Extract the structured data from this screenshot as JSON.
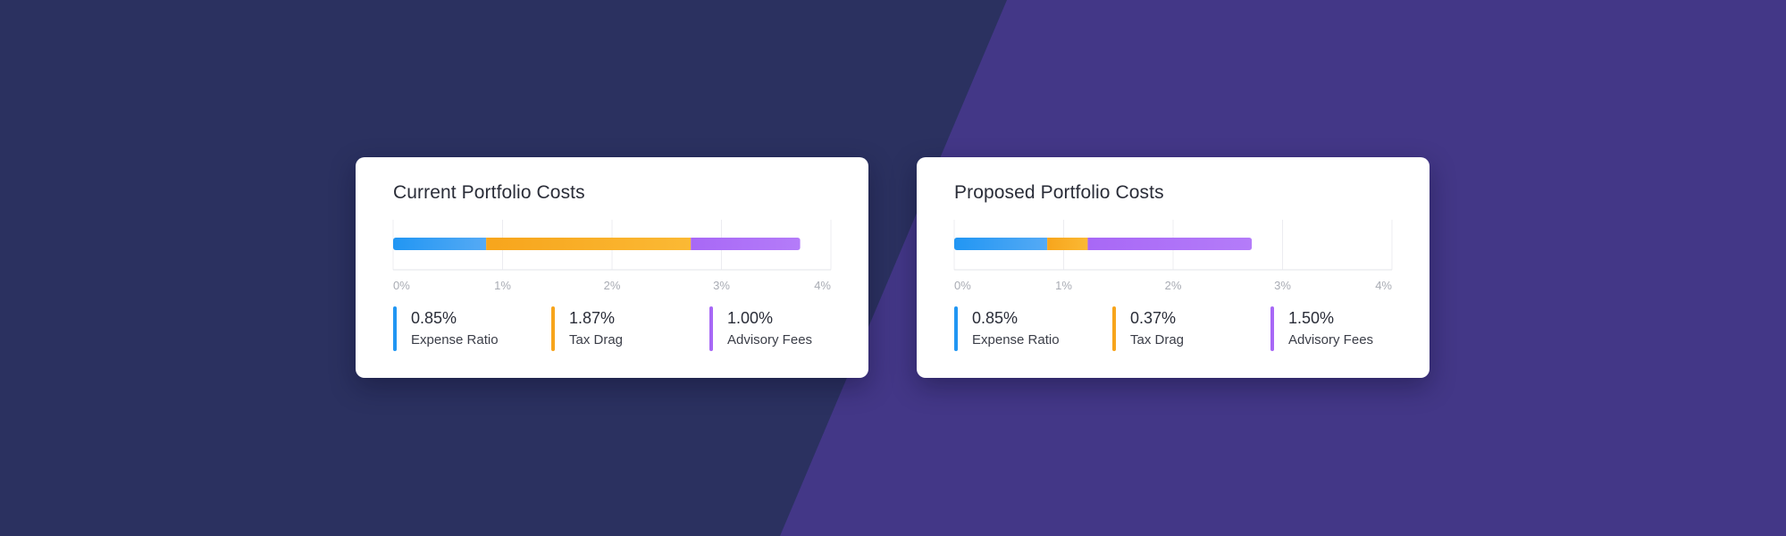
{
  "colors": {
    "expense": "#2196F3",
    "expense_light": "#55AAF5",
    "tax": "#F7A51C",
    "tax_light": "#FBB934",
    "advisory": "#A868F6",
    "advisory_light": "#B47CF9"
  },
  "chart_data": [
    {
      "type": "bar",
      "title": "Current Portfolio Costs",
      "orientation": "horizontal-stacked",
      "xlim": [
        0,
        4
      ],
      "ticks": [
        "0%",
        "1%",
        "2%",
        "3%",
        "4%"
      ],
      "series": [
        {
          "name": "Expense Ratio",
          "value": 0.85,
          "label": "0.85%",
          "color_key": "expense"
        },
        {
          "name": "Tax Drag",
          "value": 1.87,
          "label": "1.87%",
          "color_key": "tax"
        },
        {
          "name": "Advisory Fees",
          "value": 1.0,
          "label": "1.00%",
          "color_key": "advisory"
        }
      ]
    },
    {
      "type": "bar",
      "title": "Proposed Portfolio Costs",
      "orientation": "horizontal-stacked",
      "xlim": [
        0,
        4
      ],
      "ticks": [
        "0%",
        "1%",
        "2%",
        "3%",
        "4%"
      ],
      "series": [
        {
          "name": "Expense Ratio",
          "value": 0.85,
          "label": "0.85%",
          "color_key": "expense"
        },
        {
          "name": "Tax Drag",
          "value": 0.37,
          "label": "0.37%",
          "color_key": "tax"
        },
        {
          "name": "Advisory Fees",
          "value": 1.5,
          "label": "1.50%",
          "color_key": "advisory"
        }
      ]
    }
  ]
}
